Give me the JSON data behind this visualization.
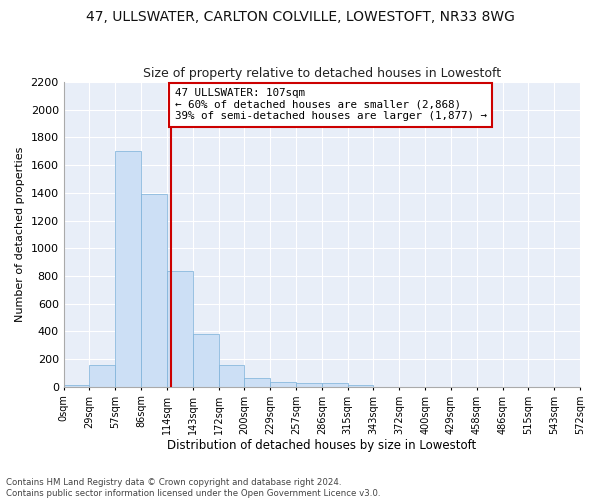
{
  "title": "47, ULLSWATER, CARLTON COLVILLE, LOWESTOFT, NR33 8WG",
  "subtitle": "Size of property relative to detached houses in Lowestoft",
  "xlabel": "Distribution of detached houses by size in Lowestoft",
  "ylabel": "Number of detached properties",
  "bar_values": [
    15,
    155,
    1700,
    1390,
    835,
    380,
    160,
    60,
    35,
    25,
    25,
    15,
    0,
    0,
    0,
    0,
    0,
    0,
    0,
    0
  ],
  "bin_labels": [
    "0sqm",
    "29sqm",
    "57sqm",
    "86sqm",
    "114sqm",
    "143sqm",
    "172sqm",
    "200sqm",
    "229sqm",
    "257sqm",
    "286sqm",
    "315sqm",
    "343sqm",
    "372sqm",
    "400sqm",
    "429sqm",
    "458sqm",
    "486sqm",
    "515sqm",
    "543sqm",
    "572sqm"
  ],
  "bar_color": "#ccdff5",
  "bar_edge_color": "#7ab0d8",
  "vline_position": 3.65,
  "annotation_text": "47 ULLSWATER: 107sqm\n← 60% of detached houses are smaller (2,868)\n39% of semi-detached houses are larger (1,877) →",
  "annotation_box_color": "#ffffff",
  "annotation_box_edge": "#cc0000",
  "vline_color": "#cc0000",
  "ylim": [
    0,
    2200
  ],
  "yticks": [
    0,
    200,
    400,
    600,
    800,
    1000,
    1200,
    1400,
    1600,
    1800,
    2000,
    2200
  ],
  "footnote1": "Contains HM Land Registry data © Crown copyright and database right 2024.",
  "footnote2": "Contains public sector information licensed under the Open Government Licence v3.0.",
  "bg_color": "#ffffff",
  "plot_bg_color": "#e8eef8",
  "grid_color": "#ffffff",
  "title_fontsize": 10,
  "subtitle_fontsize": 9,
  "num_bars": 20
}
